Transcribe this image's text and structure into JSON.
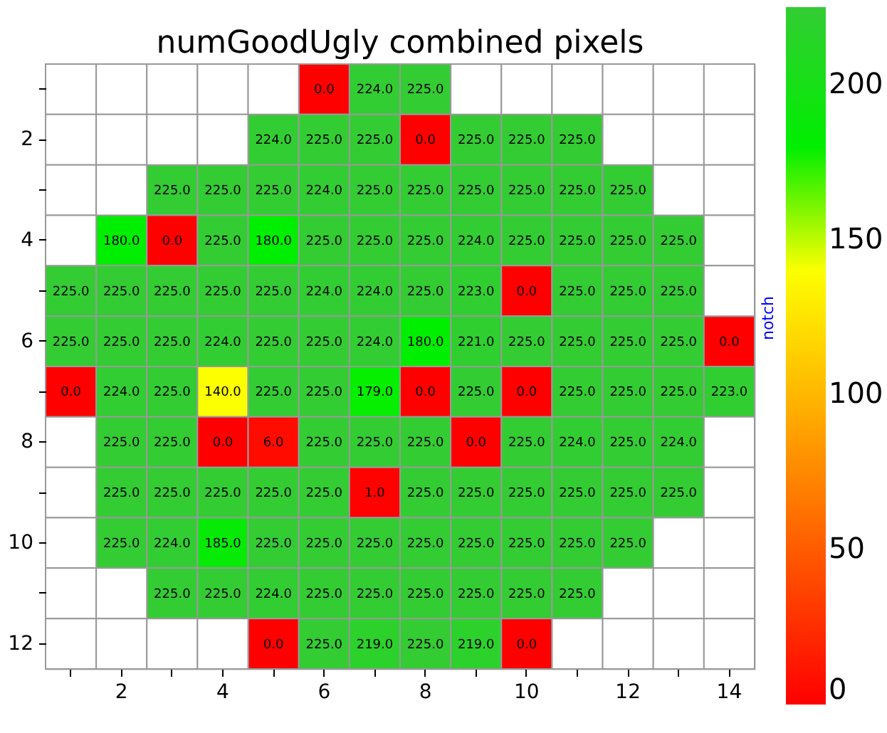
{
  "chart_data": {
    "type": "heatmap",
    "title": "numGoodUgly combined pixels",
    "categories": [
      null,
      "2",
      null,
      "4",
      null,
      "6",
      null,
      "8",
      null,
      "10",
      null,
      "12",
      null,
      "14"
    ],
    "y_categories": [
      null,
      "2",
      null,
      "4",
      null,
      "6",
      null,
      "8",
      null,
      "10",
      null,
      "12"
    ],
    "cells": [
      [
        null,
        null,
        null,
        null,
        null,
        0,
        224,
        225,
        null,
        null,
        null,
        null,
        null,
        null
      ],
      [
        null,
        null,
        null,
        null,
        224,
        225,
        225,
        0,
        225,
        225,
        225,
        null,
        null,
        null
      ],
      [
        null,
        null,
        225,
        225,
        225,
        224,
        225,
        225,
        225,
        225,
        225,
        225,
        null,
        null
      ],
      [
        null,
        180,
        0,
        225,
        180,
        225,
        225,
        225,
        224,
        225,
        225,
        225,
        225,
        null
      ],
      [
        225,
        225,
        225,
        225,
        225,
        224,
        224,
        225,
        223,
        0,
        225,
        225,
        225,
        null
      ],
      [
        225,
        225,
        225,
        224,
        225,
        225,
        224,
        180,
        221,
        225,
        225,
        225,
        225,
        0
      ],
      [
        0,
        224,
        225,
        140,
        225,
        225,
        179,
        0,
        225,
        0,
        225,
        225,
        225,
        223
      ],
      [
        null,
        225,
        225,
        0,
        6,
        225,
        225,
        225,
        0,
        225,
        224,
        225,
        224,
        null
      ],
      [
        null,
        225,
        225,
        225,
        225,
        225,
        1,
        225,
        225,
        225,
        225,
        225,
        225,
        null
      ],
      [
        null,
        225,
        224,
        185,
        225,
        225,
        225,
        225,
        225,
        225,
        225,
        225,
        null,
        null
      ],
      [
        null,
        null,
        225,
        225,
        224,
        225,
        225,
        225,
        225,
        225,
        225,
        null,
        null,
        null
      ],
      [
        null,
        null,
        null,
        null,
        0,
        225,
        219,
        225,
        219,
        0,
        null,
        null,
        null,
        null
      ]
    ],
    "cell_labels": [
      [
        null,
        null,
        null,
        null,
        null,
        "0.0",
        "224.0",
        "225.0",
        null,
        null,
        null,
        null,
        null,
        null
      ],
      [
        null,
        null,
        null,
        null,
        "224.0",
        "225.0",
        "225.0",
        "0.0",
        "225.0",
        "225.0",
        "225.0",
        null,
        null,
        null
      ],
      [
        null,
        null,
        "225.0",
        "225.0",
        "225.0",
        "224.0",
        "225.0",
        "225.0",
        "225.0",
        "225.0",
        "225.0",
        "225.0",
        null,
        null
      ],
      [
        null,
        "180.0",
        "0.0",
        "225.0",
        "180.0",
        "225.0",
        "225.0",
        "225.0",
        "224.0",
        "225.0",
        "225.0",
        "225.0",
        "225.0",
        null
      ],
      [
        "225.0",
        "225.0",
        "225.0",
        "225.0",
        "225.0",
        "224.0",
        "224.0",
        "225.0",
        "223.0",
        "0.0",
        "225.0",
        "225.0",
        "225.0",
        null
      ],
      [
        "225.0",
        "225.0",
        "225.0",
        "224.0",
        "225.0",
        "225.0",
        "224.0",
        "180.0",
        "221.0",
        "225.0",
        "225.0",
        "225.0",
        "225.0",
        "0.0"
      ],
      [
        "0.0",
        "224.0",
        "225.0",
        "140.0",
        "225.0",
        "225.0",
        "179.0",
        "0.0",
        "225.0",
        "0.0",
        "225.0",
        "225.0",
        "225.0",
        "223.0"
      ],
      [
        null,
        "225.0",
        "225.0",
        "0.0",
        "6.0",
        "225.0",
        "225.0",
        "225.0",
        "0.0",
        "225.0",
        "224.0",
        "225.0",
        "224.0",
        null
      ],
      [
        null,
        "225.0",
        "225.0",
        "225.0",
        "225.0",
        "225.0",
        "1.0",
        "225.0",
        "225.0",
        "225.0",
        "225.0",
        "225.0",
        "225.0",
        null
      ],
      [
        null,
        "225.0",
        "224.0",
        "185.0",
        "225.0",
        "225.0",
        "225.0",
        "225.0",
        "225.0",
        "225.0",
        "225.0",
        "225.0",
        null,
        null
      ],
      [
        null,
        null,
        "225.0",
        "225.0",
        "224.0",
        "225.0",
        "225.0",
        "225.0",
        "225.0",
        "225.0",
        "225.0",
        null,
        null,
        null
      ],
      [
        null,
        null,
        null,
        null,
        "0.0",
        "225.0",
        "219.0",
        "225.0",
        "219.0",
        "0.0",
        null,
        null,
        null,
        null
      ]
    ],
    "clim": [
      0,
      225
    ],
    "cticks": [
      0,
      50,
      100,
      150,
      200
    ],
    "annotations": [
      "notch"
    ]
  }
}
